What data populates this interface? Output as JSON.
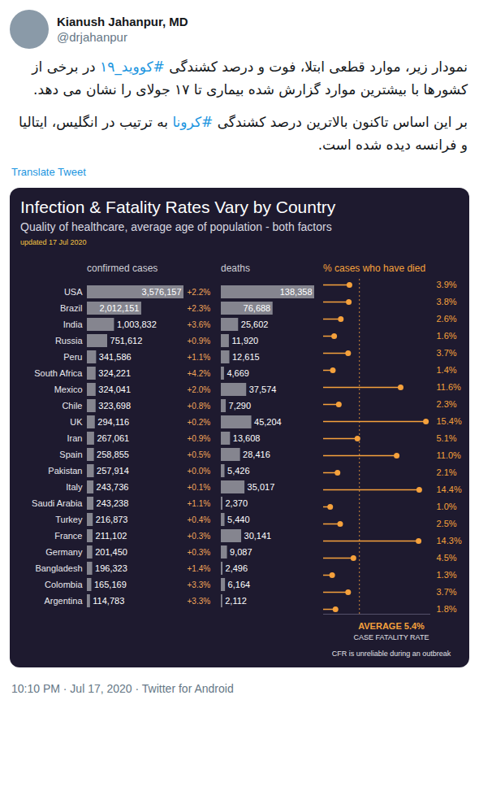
{
  "tweet": {
    "author": "Kianush Jahanpur, MD",
    "handle": "@drjahanpur",
    "paragraphs": [
      "نمودار زیر، موارد قطعی ابتلا، فوت و درصد کشندگی #کووید_۱۹ در برخی از کشورها با بیشترین موارد گزارش شده بیماری تا ۱۷ جولای را نشان می دهد.",
      "بر این اساس تاکنون بالاترین درصد کشندگی #کرونا به ترتیب در انگلیس، ایتالیا و  فرانسه دیده شده است."
    ],
    "translate": "Translate Tweet",
    "footer": "10:10 PM · Jul 17, 2020 · Twitter for Android"
  },
  "chart_data": {
    "type": "bar",
    "orientation": "horizontal",
    "title": "Infection & Fatality Rates Vary by Country",
    "subtitle": "Quality of healthcare, average age of population - both factors",
    "updated": "updated 17 Jul 2020",
    "tick_labels": "y",
    "data_labels": true,
    "categories": [
      "USA",
      "Brazil",
      "India",
      "Russia",
      "Peru",
      "South Africa",
      "Mexico",
      "Chile",
      "UK",
      "Iran",
      "Spain",
      "Pakistan",
      "Italy",
      "Saudi Arabia",
      "Turkey",
      "France",
      "Germany",
      "Bangladesh",
      "Colombia",
      "Argentina"
    ],
    "series": [
      {
        "name": "confirmed cases",
        "color": "#85858f",
        "xlim": [
          0,
          3576157
        ],
        "values": [
          3576157,
          2012151,
          1003832,
          751612,
          341586,
          324221,
          324041,
          323698,
          294116,
          267061,
          258855,
          257914,
          243736,
          243238,
          216873,
          211102,
          201450,
          196323,
          165169,
          114783
        ],
        "value_labels": [
          "3,576,157",
          "2,012,151",
          "1,003,832",
          "751,612",
          "341,586",
          "324,221",
          "324,041",
          "323,698",
          "294,116",
          "267,061",
          "258,855",
          "257,914",
          "243,736",
          "243,238",
          "216,873",
          "211,102",
          "201,450",
          "196,323",
          "165,169",
          "114,783"
        ],
        "change_values": [
          2.2,
          2.3,
          3.6,
          0.9,
          1.1,
          4.2,
          2.0,
          0.8,
          0.2,
          0.9,
          0.5,
          0.0,
          0.1,
          1.1,
          0.4,
          0.3,
          0.3,
          1.4,
          3.3,
          3.3
        ],
        "change_labels": [
          "+2.2%",
          "+2.3%",
          "+3.6%",
          "+0.9%",
          "+1.1%",
          "+4.2%",
          "+2.0%",
          "+0.8%",
          "+0.2%",
          "+0.9%",
          "+0.5%",
          "+0.0%",
          "+0.1%",
          "+1.1%",
          "+0.4%",
          "+0.3%",
          "+0.3%",
          "+1.4%",
          "+3.3%",
          "+3.3%"
        ]
      },
      {
        "name": "deaths",
        "color": "#85858f",
        "xlim": [
          0,
          138358
        ],
        "values": [
          138358,
          76688,
          25602,
          11920,
          12615,
          4669,
          37574,
          7290,
          45204,
          13608,
          28416,
          5426,
          35017,
          2370,
          5440,
          30141,
          9087,
          2496,
          6164,
          2112
        ],
        "value_labels": [
          "138,358",
          "76,688",
          "25,602",
          "11,920",
          "12,615",
          "4,669",
          "37,574",
          "7,290",
          "45,204",
          "13,608",
          "28,416",
          "5,426",
          "35,017",
          "2,370",
          "5,440",
          "30,141",
          "9,087",
          "2,496",
          "6,164",
          "2,112"
        ]
      },
      {
        "name": "% cases who have died",
        "type": "lollipop",
        "color": "#f5a13c",
        "xlim": [
          0,
          16
        ],
        "values": [
          3.9,
          3.8,
          2.6,
          1.6,
          3.7,
          1.4,
          11.6,
          2.3,
          15.4,
          5.1,
          11.0,
          2.1,
          14.4,
          1.0,
          2.5,
          14.3,
          4.5,
          1.3,
          3.7,
          1.8
        ],
        "value_labels": [
          "3.9%",
          "3.8%",
          "2.6%",
          "1.6%",
          "3.7%",
          "1.4%",
          "11.6%",
          "2.3%",
          "15.4%",
          "5.1%",
          "11.0%",
          "2.1%",
          "14.4%",
          "1.0%",
          "2.5%",
          "14.3%",
          "4.5%",
          "1.3%",
          "3.7%",
          "1.8%"
        ]
      }
    ],
    "average": {
      "value": 5.4,
      "label": "AVERAGE 5.4%",
      "caption": "CASE FATALITY RATE"
    },
    "note": "CFR is unreliable during an outbreak"
  }
}
